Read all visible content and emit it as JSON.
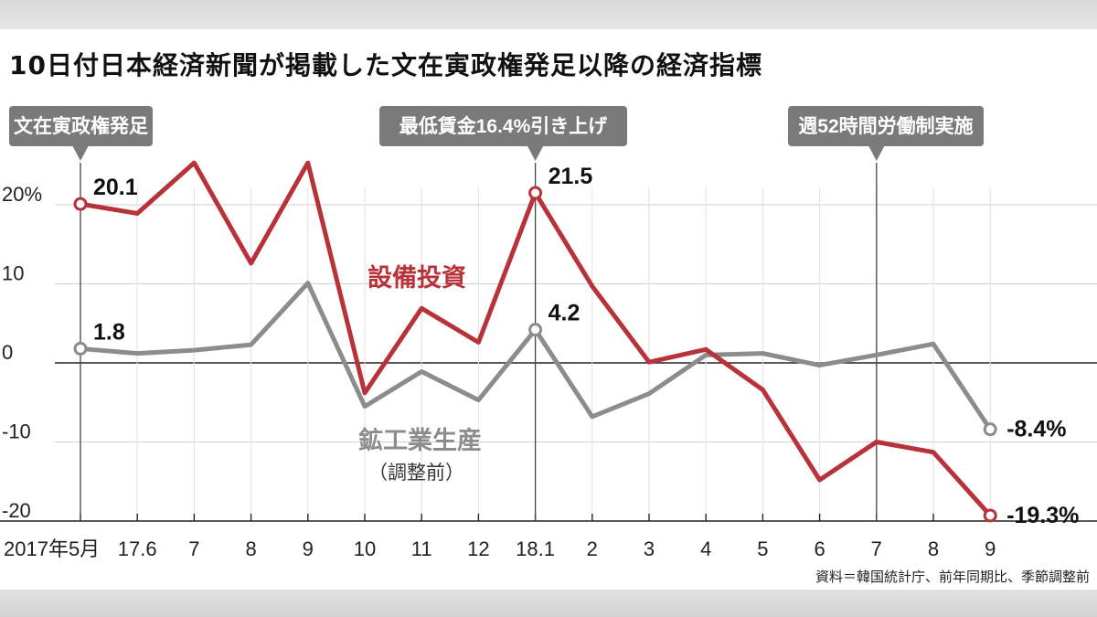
{
  "header": {
    "title": "10日付日本経済新聞が掲載した文在寅政権発足以降の経済指標"
  },
  "chart_data": {
    "type": "line",
    "categories": [
      "2017年5月",
      "17.6",
      "7",
      "8",
      "9",
      "10",
      "11",
      "12",
      "18.1",
      "2",
      "3",
      "4",
      "5",
      "6",
      "7",
      "8",
      "9"
    ],
    "ylim": [
      -20,
      25
    ],
    "y_ticks": [
      "20%",
      "10",
      "0",
      "-10",
      "-20"
    ],
    "y_tick_values": [
      20,
      10,
      0,
      -10,
      -20
    ],
    "grid": true,
    "series": [
      {
        "name": "設備投資",
        "color": "#b8323a",
        "values": [
          20.1,
          18.9,
          25.3,
          12.6,
          25.3,
          -3.8,
          6.9,
          2.6,
          21.5,
          9.7,
          0.1,
          1.7,
          -3.4,
          -14.8,
          -10.0,
          -11.3,
          -19.3
        ]
      },
      {
        "name": "鉱工業生産",
        "subname": "（調整前）",
        "color": "#8c8c8c",
        "values": [
          1.8,
          1.2,
          1.6,
          2.3,
          10.1,
          -5.5,
          -1.1,
          -4.7,
          4.2,
          -6.8,
          -3.9,
          1.0,
          1.2,
          -0.3,
          1.0,
          2.4,
          -8.4
        ]
      }
    ],
    "point_labels": [
      {
        "series": 0,
        "index": 0,
        "text": "20.1"
      },
      {
        "series": 0,
        "index": 8,
        "text": "21.5"
      },
      {
        "series": 0,
        "index": 16,
        "text": "-19.3%"
      },
      {
        "series": 1,
        "index": 0,
        "text": "1.8"
      },
      {
        "series": 1,
        "index": 8,
        "text": "4.2"
      },
      {
        "series": 1,
        "index": 16,
        "text": "-8.4%"
      }
    ],
    "events": [
      {
        "index": 0,
        "label": "文在寅政権発足"
      },
      {
        "index": 8,
        "label": "最低賃金16.4%引き上げ"
      },
      {
        "index": 14,
        "label": "週52時間労働制実施"
      }
    ]
  },
  "footer": {
    "source": "資料＝韓国統計庁、前年同期比、季節調整前"
  }
}
